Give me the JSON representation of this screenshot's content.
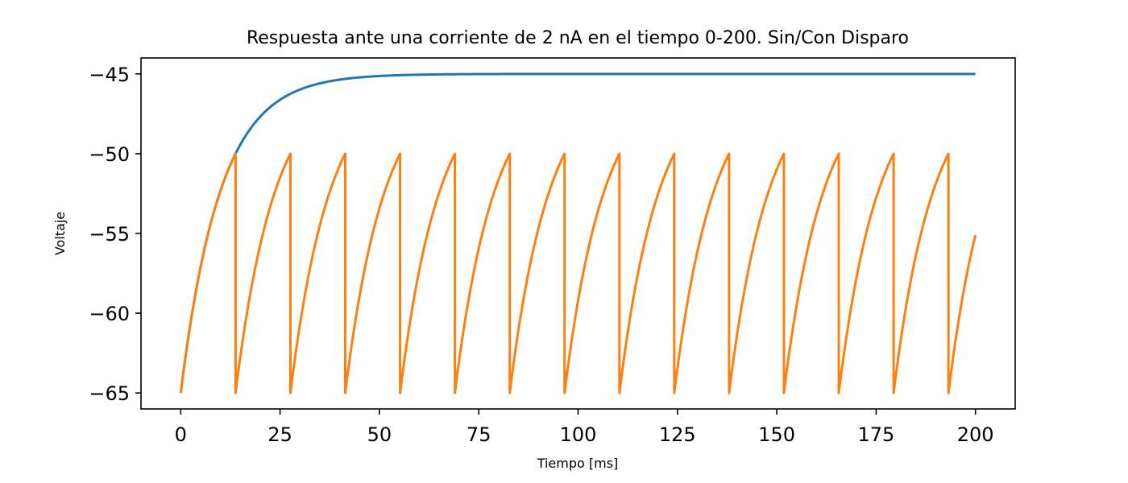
{
  "chart_data": {
    "type": "line",
    "title": "Respuesta ante una corriente de 2 nA en el tiempo 0-200. Sin/Con Disparo",
    "xlabel": "Tiempo [ms]",
    "ylabel": "Voltaje",
    "xlim": [
      -10,
      210
    ],
    "ylim": [
      -66,
      -44
    ],
    "x_ticks": [
      0,
      25,
      50,
      75,
      100,
      125,
      150,
      175,
      200
    ],
    "y_ticks": [
      -65,
      -60,
      -55,
      -50,
      -45
    ],
    "x_tick_labels": [
      "0",
      "25",
      "50",
      "75",
      "100",
      "125",
      "150",
      "175",
      "200"
    ],
    "y_tick_labels": [
      "−65",
      "−60",
      "−55",
      "−50",
      "−45"
    ],
    "grid": false,
    "legend": "none",
    "model": {
      "v_rest": -65,
      "v_inf": -45,
      "tau_ms": 10,
      "v_threshold": -50,
      "v_reset": -65,
      "t_start": 0,
      "t_end": 200
    },
    "series": [
      {
        "color": "#1f77b4",
        "spiking": false
      },
      {
        "color": "#ff7f0e",
        "spiking": true
      }
    ]
  }
}
